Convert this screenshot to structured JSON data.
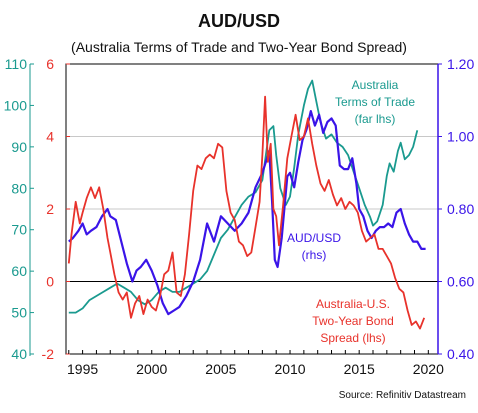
{
  "chart_data": {
    "type": "line",
    "title": "AUD/USD",
    "subtitle": "(Australia Terms of Trade and Two-Year Bond Spread)",
    "source": "Source: Refinitiv Datastream",
    "x_ticks": [
      "1995",
      "2000",
      "2005",
      "2010",
      "2015",
      "2020"
    ],
    "x_range": [
      1993.8,
      2020.7
    ],
    "axes": {
      "far_left": {
        "color": "#1a9a8f",
        "range": [
          40,
          110
        ],
        "ticks": [
          "40",
          "50",
          "60",
          "70",
          "80",
          "90",
          "100",
          "110"
        ]
      },
      "left": {
        "color": "#e8322b",
        "range": [
          -2,
          6
        ],
        "ticks": [
          "-2",
          "0",
          "2",
          "4",
          "6"
        ]
      },
      "right": {
        "color": "#3a14e8",
        "range": [
          0.4,
          1.2
        ],
        "ticks": [
          "0.40",
          "0.60",
          "0.80",
          "1.00",
          "1.20"
        ]
      }
    },
    "gridlines_right": [
      0.6,
      0.8,
      1.0
    ],
    "zero_line_left": 0,
    "series": [
      {
        "name": "Australia Terms of Trade (far lhs)",
        "label_lines": [
          "Australia",
          "Terms of Trade",
          "(far lhs)"
        ],
        "axis": "far_left",
        "color": "#1a9a8f",
        "points": [
          [
            1994.0,
            50
          ],
          [
            1994.5,
            50
          ],
          [
            1995.0,
            51
          ],
          [
            1995.5,
            53
          ],
          [
            1996.0,
            54
          ],
          [
            1996.5,
            55
          ],
          [
            1997.0,
            56
          ],
          [
            1997.5,
            57
          ],
          [
            1998.0,
            56
          ],
          [
            1998.5,
            55
          ],
          [
            1999.0,
            53
          ],
          [
            1999.5,
            52
          ],
          [
            2000.0,
            53
          ],
          [
            2000.5,
            55
          ],
          [
            2001.0,
            56
          ],
          [
            2001.5,
            55
          ],
          [
            2002.0,
            55
          ],
          [
            2002.5,
            56
          ],
          [
            2003.0,
            57
          ],
          [
            2003.5,
            58
          ],
          [
            2004.0,
            60
          ],
          [
            2004.5,
            64
          ],
          [
            2005.0,
            68
          ],
          [
            2005.5,
            70
          ],
          [
            2006.0,
            73
          ],
          [
            2006.5,
            76
          ],
          [
            2007.0,
            78
          ],
          [
            2007.5,
            79
          ],
          [
            2008.0,
            82
          ],
          [
            2008.5,
            94
          ],
          [
            2008.8,
            95
          ],
          [
            2009.0,
            88
          ],
          [
            2009.3,
            80
          ],
          [
            2009.7,
            76
          ],
          [
            2010.0,
            78
          ],
          [
            2010.3,
            85
          ],
          [
            2010.6,
            93
          ],
          [
            2011.0,
            100
          ],
          [
            2011.3,
            104
          ],
          [
            2011.6,
            106
          ],
          [
            2011.9,
            101
          ],
          [
            2012.2,
            96
          ],
          [
            2012.6,
            92
          ],
          [
            2013.0,
            93
          ],
          [
            2013.4,
            91
          ],
          [
            2013.8,
            90
          ],
          [
            2014.2,
            88
          ],
          [
            2014.6,
            84
          ],
          [
            2015.0,
            80
          ],
          [
            2015.4,
            76
          ],
          [
            2015.8,
            73
          ],
          [
            2016.0,
            71
          ],
          [
            2016.3,
            72
          ],
          [
            2016.7,
            76
          ],
          [
            2017.0,
            83
          ],
          [
            2017.2,
            86
          ],
          [
            2017.5,
            84
          ],
          [
            2017.8,
            89
          ],
          [
            2018.0,
            91
          ],
          [
            2018.3,
            87
          ],
          [
            2018.6,
            88
          ],
          [
            2018.9,
            90
          ],
          [
            2019.2,
            94
          ]
        ]
      },
      {
        "name": "AUD/USD (rhs)",
        "label_lines": [
          "AUD/USD",
          "(rhs)"
        ],
        "axis": "right",
        "color": "#3a14e8",
        "points": [
          [
            1994.0,
            0.71
          ],
          [
            1994.3,
            0.72
          ],
          [
            1994.7,
            0.74
          ],
          [
            1995.0,
            0.76
          ],
          [
            1995.3,
            0.73
          ],
          [
            1995.6,
            0.74
          ],
          [
            1996.0,
            0.75
          ],
          [
            1996.4,
            0.78
          ],
          [
            1996.8,
            0.8
          ],
          [
            1997.0,
            0.78
          ],
          [
            1997.4,
            0.77
          ],
          [
            1997.8,
            0.71
          ],
          [
            1998.2,
            0.65
          ],
          [
            1998.6,
            0.6
          ],
          [
            1998.9,
            0.63
          ],
          [
            1999.2,
            0.64
          ],
          [
            1999.6,
            0.66
          ],
          [
            2000.0,
            0.63
          ],
          [
            2000.4,
            0.59
          ],
          [
            2000.8,
            0.54
          ],
          [
            2001.2,
            0.51
          ],
          [
            2001.6,
            0.52
          ],
          [
            2002.0,
            0.53
          ],
          [
            2002.5,
            0.56
          ],
          [
            2003.0,
            0.6
          ],
          [
            2003.5,
            0.66
          ],
          [
            2004.0,
            0.76
          ],
          [
            2004.5,
            0.71
          ],
          [
            2005.0,
            0.78
          ],
          [
            2005.5,
            0.76
          ],
          [
            2006.0,
            0.74
          ],
          [
            2006.5,
            0.76
          ],
          [
            2007.0,
            0.79
          ],
          [
            2007.5,
            0.86
          ],
          [
            2008.0,
            0.9
          ],
          [
            2008.5,
            0.96
          ],
          [
            2008.7,
            0.82
          ],
          [
            2008.9,
            0.66
          ],
          [
            2009.1,
            0.64
          ],
          [
            2009.4,
            0.72
          ],
          [
            2009.8,
            0.89
          ],
          [
            2010.0,
            0.9
          ],
          [
            2010.3,
            0.86
          ],
          [
            2010.6,
            0.93
          ],
          [
            2010.9,
            0.99
          ],
          [
            2011.2,
            1.02
          ],
          [
            2011.5,
            1.07
          ],
          [
            2011.8,
            1.03
          ],
          [
            2012.1,
            1.06
          ],
          [
            2012.4,
            1.01
          ],
          [
            2012.7,
            1.04
          ],
          [
            2013.0,
            1.05
          ],
          [
            2013.3,
            1.03
          ],
          [
            2013.6,
            0.92
          ],
          [
            2013.9,
            0.91
          ],
          [
            2014.2,
            0.91
          ],
          [
            2014.5,
            0.94
          ],
          [
            2014.8,
            0.87
          ],
          [
            2015.0,
            0.8
          ],
          [
            2015.3,
            0.78
          ],
          [
            2015.6,
            0.74
          ],
          [
            2015.9,
            0.72
          ],
          [
            2016.2,
            0.74
          ],
          [
            2016.5,
            0.75
          ],
          [
            2016.8,
            0.75
          ],
          [
            2017.1,
            0.76
          ],
          [
            2017.4,
            0.75
          ],
          [
            2017.7,
            0.79
          ],
          [
            2018.0,
            0.8
          ],
          [
            2018.3,
            0.76
          ],
          [
            2018.6,
            0.73
          ],
          [
            2018.9,
            0.71
          ],
          [
            2019.2,
            0.71
          ],
          [
            2019.5,
            0.69
          ],
          [
            2019.8,
            0.69
          ]
        ]
      },
      {
        "name": "Australia-U.S. Two-Year Bond Spread (lhs)",
        "label_lines": [
          "Australia-U.S.",
          "Two-Year Bond",
          "Spread (lhs)"
        ],
        "axis": "left",
        "color": "#e8322b",
        "points": [
          [
            1994.0,
            0.5
          ],
          [
            1994.2,
            1.3
          ],
          [
            1994.5,
            2.2
          ],
          [
            1994.8,
            1.6
          ],
          [
            1995.0,
            1.9
          ],
          [
            1995.3,
            2.3
          ],
          [
            1995.6,
            2.6
          ],
          [
            1995.9,
            2.3
          ],
          [
            1996.2,
            2.6
          ],
          [
            1996.5,
            2.0
          ],
          [
            1996.8,
            1.2
          ],
          [
            1997.0,
            0.8
          ],
          [
            1997.3,
            0.2
          ],
          [
            1997.6,
            -0.3
          ],
          [
            1997.9,
            -0.5
          ],
          [
            1998.2,
            -0.3
          ],
          [
            1998.5,
            -1.0
          ],
          [
            1998.8,
            -0.6
          ],
          [
            1999.1,
            -0.4
          ],
          [
            1999.4,
            -0.9
          ],
          [
            1999.7,
            -0.5
          ],
          [
            2000.0,
            -0.7
          ],
          [
            2000.3,
            -0.8
          ],
          [
            2000.6,
            -0.4
          ],
          [
            2000.9,
            0.2
          ],
          [
            2001.2,
            0.3
          ],
          [
            2001.5,
            0.8
          ],
          [
            2001.8,
            -0.3
          ],
          [
            2002.1,
            -0.4
          ],
          [
            2002.4,
            0.2
          ],
          [
            2002.7,
            1.3
          ],
          [
            2003.0,
            2.5
          ],
          [
            2003.3,
            3.2
          ],
          [
            2003.6,
            3.1
          ],
          [
            2003.9,
            3.4
          ],
          [
            2004.2,
            3.5
          ],
          [
            2004.5,
            3.4
          ],
          [
            2004.8,
            3.8
          ],
          [
            2005.1,
            3.7
          ],
          [
            2005.4,
            2.5
          ],
          [
            2005.7,
            1.9
          ],
          [
            2006.0,
            1.7
          ],
          [
            2006.3,
            1.1
          ],
          [
            2006.6,
            1.0
          ],
          [
            2006.9,
            0.7
          ],
          [
            2007.2,
            0.8
          ],
          [
            2007.5,
            1.5
          ],
          [
            2007.8,
            2.2
          ],
          [
            2008.0,
            3.5
          ],
          [
            2008.2,
            5.1
          ],
          [
            2008.4,
            3.3
          ],
          [
            2008.6,
            3.8
          ],
          [
            2008.8,
            2.0
          ],
          [
            2009.0,
            1.8
          ],
          [
            2009.2,
            1.0
          ],
          [
            2009.5,
            2.1
          ],
          [
            2009.8,
            3.4
          ],
          [
            2010.1,
            4.0
          ],
          [
            2010.4,
            4.6
          ],
          [
            2010.7,
            3.9
          ],
          [
            2011.0,
            4.0
          ],
          [
            2011.3,
            4.5
          ],
          [
            2011.6,
            3.8
          ],
          [
            2011.9,
            3.2
          ],
          [
            2012.2,
            2.7
          ],
          [
            2012.5,
            2.5
          ],
          [
            2012.8,
            2.8
          ],
          [
            2013.1,
            2.4
          ],
          [
            2013.4,
            2.1
          ],
          [
            2013.7,
            2.3
          ],
          [
            2014.0,
            2.0
          ],
          [
            2014.3,
            2.2
          ],
          [
            2014.6,
            2.1
          ],
          [
            2014.9,
            1.9
          ],
          [
            2015.2,
            1.4
          ],
          [
            2015.5,
            1.1
          ],
          [
            2015.8,
            1.2
          ],
          [
            2016.1,
            1.3
          ],
          [
            2016.4,
            0.9
          ],
          [
            2016.7,
            0.9
          ],
          [
            2017.0,
            0.7
          ],
          [
            2017.3,
            0.5
          ],
          [
            2017.6,
            0.1
          ],
          [
            2017.9,
            -0.2
          ],
          [
            2018.2,
            -0.3
          ],
          [
            2018.5,
            -0.8
          ],
          [
            2018.8,
            -1.2
          ],
          [
            2019.1,
            -1.1
          ],
          [
            2019.4,
            -1.3
          ],
          [
            2019.7,
            -1.0
          ]
        ]
      }
    ]
  }
}
